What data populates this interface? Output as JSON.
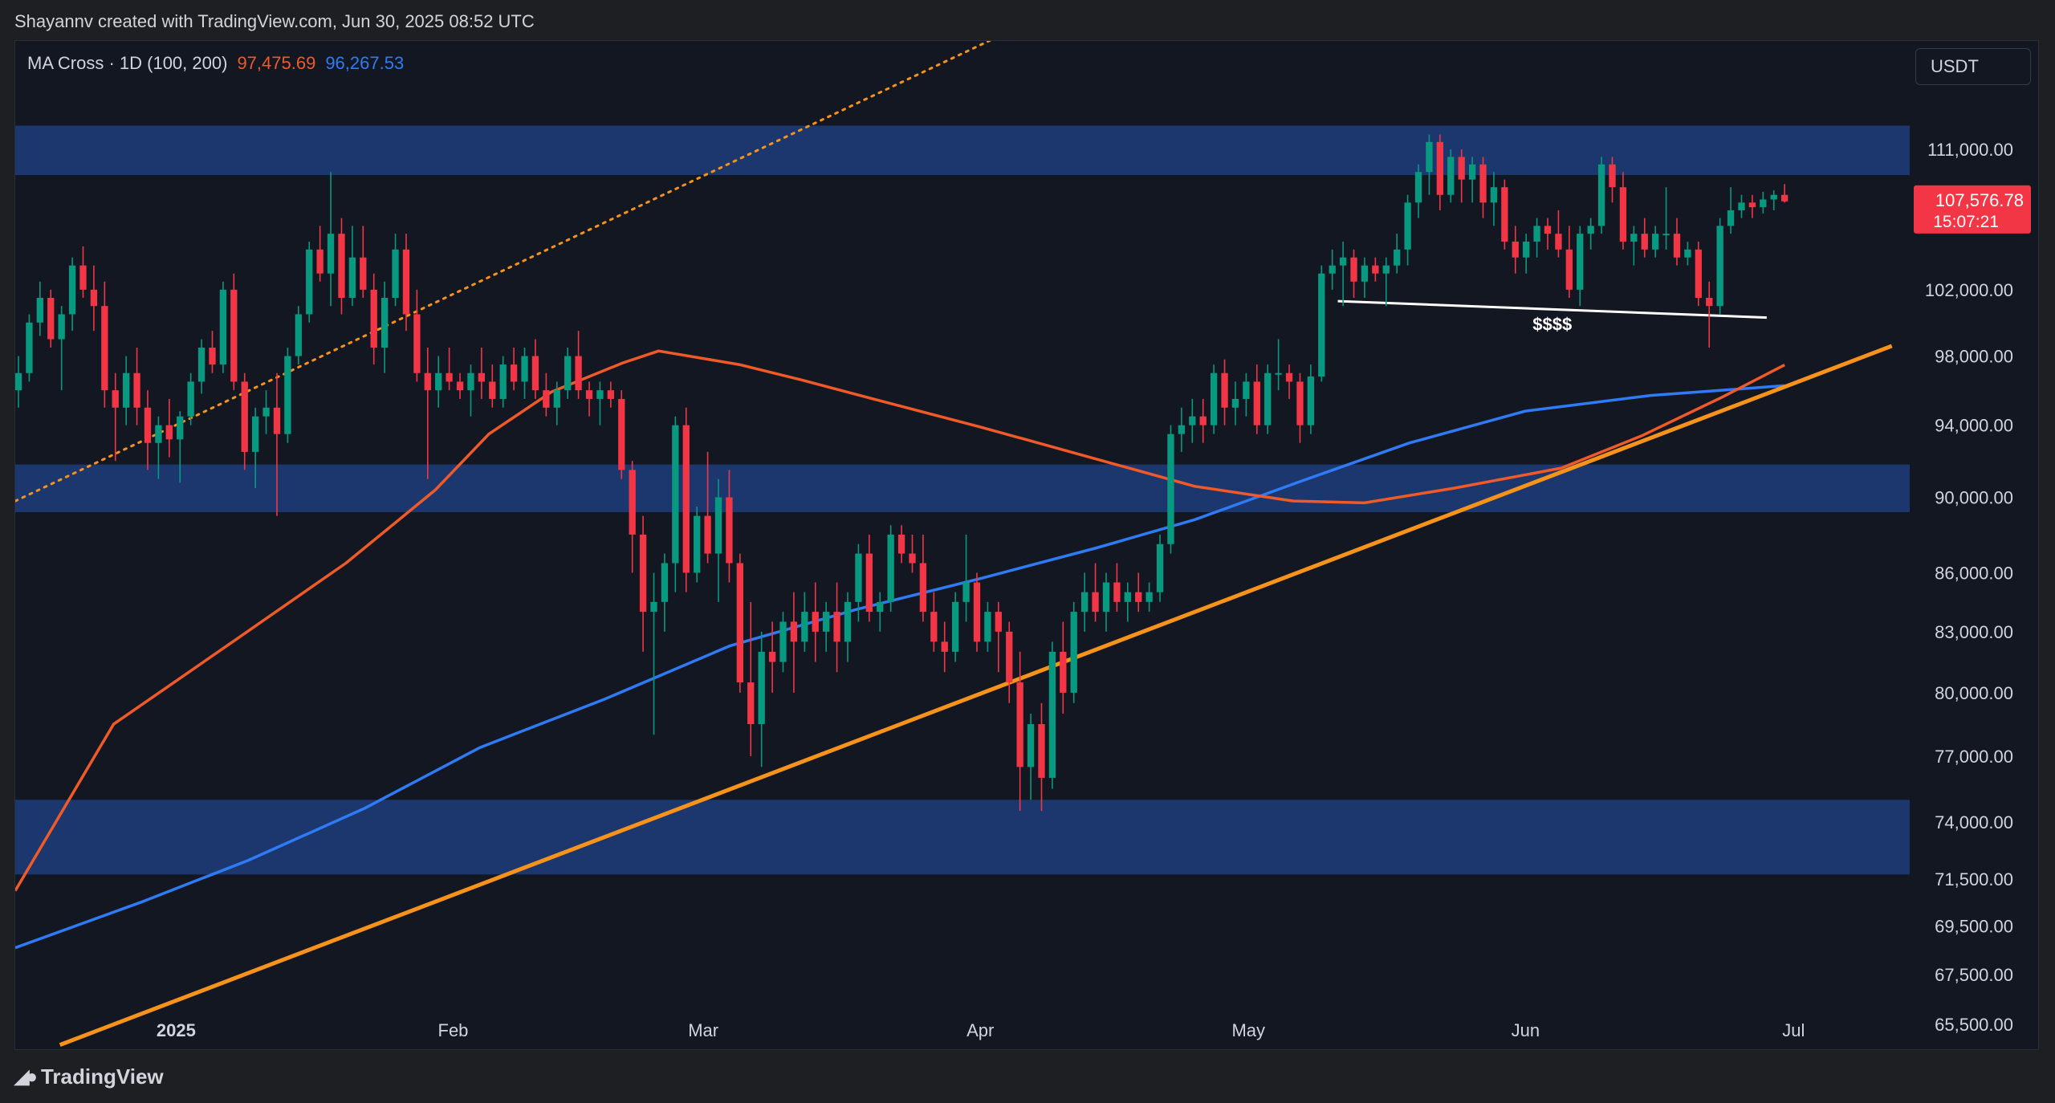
{
  "header": {
    "title": "Shayannv created with TradingView.com, Jun 30, 2025 08:52 UTC"
  },
  "legend": {
    "name": "MA Cross · 1D (100, 200)",
    "ma100": "97,475.69",
    "ma200": "96,267.53"
  },
  "currency": "USDT",
  "last_price": {
    "value": "107,576.78",
    "countdown": "15:07:21",
    "color": "#f23645"
  },
  "brand": "TradingView",
  "colors": {
    "up": "#089981",
    "down": "#f23645",
    "ma100": "#f05a28",
    "ma200": "#2f7bf5",
    "trendline": "#f7931a",
    "zone": "#1f3d7a",
    "background": "#131722"
  },
  "annotation": {
    "label": "$$$$"
  },
  "chart_data": {
    "type": "candlestick",
    "symbol_pair": "BTC/USDT",
    "timeframe": "1D",
    "y_axis": {
      "scale": "log",
      "ticks": [
        "111,000.00",
        "102,000.00",
        "98,000.00",
        "94,000.00",
        "90,000.00",
        "86,000.00",
        "83,000.00",
        "80,000.00",
        "77,000.00",
        "74,000.00",
        "71,500.00",
        "69,500.00",
        "67,500.00",
        "65,500.00"
      ]
    },
    "x_axis": {
      "ticks": [
        {
          "label": "2025",
          "date": "2025-01-01",
          "bold": true
        },
        {
          "label": "Feb",
          "date": "2025-02-01"
        },
        {
          "label": "Mar",
          "date": "2025-03-01"
        },
        {
          "label": "Apr",
          "date": "2025-04-01"
        },
        {
          "label": "May",
          "date": "2025-05-01"
        },
        {
          "label": "Jun",
          "date": "2025-06-01"
        },
        {
          "label": "Jul",
          "date": "2025-07-01"
        }
      ]
    },
    "x_range": [
      "2024-12-14",
      "2025-07-14"
    ],
    "y_range": [
      64500,
      118500
    ],
    "zones": [
      {
        "from": 109300,
        "to": 112600
      },
      {
        "from": 89200,
        "to": 91800
      },
      {
        "from": 71700,
        "to": 75000
      }
    ],
    "trendlines": [
      {
        "kind": "support",
        "style": "solid",
        "from": [
          "2024-12-19",
          64700
        ],
        "to": [
          "2025-07-12",
          98600
        ]
      },
      {
        "kind": "channel",
        "style": "dotted",
        "from": [
          "2024-12-14",
          89800
        ],
        "to": [
          "2025-04-15",
          122500
        ]
      },
      {
        "kind": "liquidity",
        "style": "solid-white",
        "from": [
          "2025-05-11",
          101300
        ],
        "to": [
          "2025-06-28",
          100300
        ]
      }
    ],
    "ma100": [
      [
        "2024-12-14",
        71000
      ],
      [
        "2024-12-25",
        78500
      ],
      [
        "2025-01-08",
        82700
      ],
      [
        "2025-01-20",
        86500
      ],
      [
        "2025-01-30",
        90400
      ],
      [
        "2025-02-05",
        93500
      ],
      [
        "2025-02-12",
        95900
      ],
      [
        "2025-02-20",
        97600
      ],
      [
        "2025-02-24",
        98300
      ],
      [
        "2025-03-05",
        97500
      ],
      [
        "2025-03-12",
        96600
      ],
      [
        "2025-03-20",
        95500
      ],
      [
        "2025-04-01",
        93900
      ],
      [
        "2025-04-14",
        92100
      ],
      [
        "2025-04-25",
        90600
      ],
      [
        "2025-05-06",
        89800
      ],
      [
        "2025-05-14",
        89700
      ],
      [
        "2025-05-24",
        90500
      ],
      [
        "2025-06-05",
        91600
      ],
      [
        "2025-06-14",
        93400
      ],
      [
        "2025-06-23",
        95600
      ],
      [
        "2025-06-30",
        97476
      ]
    ],
    "ma200": [
      [
        "2024-12-14",
        68600
      ],
      [
        "2024-12-28",
        70500
      ],
      [
        "2025-01-09",
        72300
      ],
      [
        "2025-01-22",
        74600
      ],
      [
        "2025-02-04",
        77400
      ],
      [
        "2025-02-18",
        79700
      ],
      [
        "2025-03-04",
        82300
      ],
      [
        "2025-03-18",
        84100
      ],
      [
        "2025-04-01",
        85700
      ],
      [
        "2025-04-14",
        87300
      ],
      [
        "2025-04-25",
        88800
      ],
      [
        "2025-05-07",
        90900
      ],
      [
        "2025-05-19",
        93000
      ],
      [
        "2025-06-01",
        94800
      ],
      [
        "2025-06-15",
        95700
      ],
      [
        "2025-06-30",
        96268
      ]
    ],
    "candles_ohlc": [
      [
        96000,
        98000,
        95000,
        97000
      ],
      [
        97000,
        100500,
        96500,
        100000
      ],
      [
        100000,
        102500,
        99200,
        101500
      ],
      [
        101500,
        102000,
        98500,
        99000
      ],
      [
        99000,
        101000,
        96000,
        100500
      ],
      [
        100500,
        104000,
        99500,
        103500
      ],
      [
        103500,
        104700,
        101500,
        102000
      ],
      [
        102000,
        103500,
        99500,
        101000
      ],
      [
        101000,
        102500,
        95000,
        96000
      ],
      [
        96000,
        97000,
        92000,
        95000
      ],
      [
        95000,
        98000,
        94000,
        97000
      ],
      [
        97000,
        98500,
        94000,
        95000
      ],
      [
        95000,
        96000,
        91500,
        93000
      ],
      [
        93000,
        94500,
        91000,
        94000
      ],
      [
        94000,
        95500,
        92200,
        93200
      ],
      [
        93200,
        94800,
        90800,
        94500
      ],
      [
        94500,
        97000,
        94000,
        96500
      ],
      [
        96500,
        99000,
        95800,
        98500
      ],
      [
        98500,
        99500,
        97000,
        97500
      ],
      [
        97500,
        102500,
        97000,
        102000
      ],
      [
        102000,
        103000,
        96000,
        96500
      ],
      [
        96500,
        97000,
        91500,
        92500
      ],
      [
        92500,
        95000,
        90500,
        94500
      ],
      [
        94500,
        96000,
        93500,
        95000
      ],
      [
        95000,
        97000,
        89000,
        93500
      ],
      [
        93500,
        98500,
        93000,
        98000
      ],
      [
        98000,
        101000,
        97500,
        100500
      ],
      [
        100500,
        105000,
        100000,
        104500
      ],
      [
        104500,
        106000,
        102500,
        103000
      ],
      [
        103000,
        109500,
        101000,
        105500
      ],
      [
        105500,
        106500,
        100500,
        101500
      ],
      [
        101500,
        106000,
        101000,
        104000
      ],
      [
        104000,
        106000,
        101500,
        102000
      ],
      [
        102000,
        103000,
        97500,
        98500
      ],
      [
        98500,
        102500,
        97000,
        101500
      ],
      [
        101500,
        105500,
        101000,
        104500
      ],
      [
        104500,
        105500,
        99500,
        100500
      ],
      [
        100500,
        102000,
        96500,
        97000
      ],
      [
        97000,
        98500,
        91000,
        96000
      ],
      [
        96000,
        98000,
        95000,
        97000
      ],
      [
        97000,
        98500,
        96000,
        96500
      ],
      [
        96500,
        97000,
        95500,
        96000
      ],
      [
        96000,
        97500,
        94500,
        97000
      ],
      [
        97000,
        98500,
        95500,
        96500
      ],
      [
        96500,
        97500,
        95000,
        95500
      ],
      [
        95500,
        98000,
        95000,
        97500
      ],
      [
        97500,
        98500,
        96000,
        96500
      ],
      [
        96500,
        98500,
        95500,
        98000
      ],
      [
        98000,
        99000,
        95500,
        96000
      ],
      [
        96000,
        97000,
        94500,
        95000
      ],
      [
        95000,
        96500,
        94000,
        96000
      ],
      [
        96000,
        98500,
        95500,
        98000
      ],
      [
        98000,
        99500,
        95500,
        96000
      ],
      [
        96000,
        96500,
        94500,
        95500
      ],
      [
        95500,
        96500,
        94000,
        96000
      ],
      [
        96000,
        96500,
        95000,
        95500
      ],
      [
        95500,
        96000,
        91000,
        91500
      ],
      [
        91500,
        92000,
        86000,
        88000
      ],
      [
        88000,
        89000,
        82000,
        84000
      ],
      [
        84000,
        86000,
        78000,
        84500
      ],
      [
        84500,
        87000,
        83000,
        86500
      ],
      [
        86500,
        94500,
        85000,
        94000
      ],
      [
        94000,
        95000,
        85000,
        86000
      ],
      [
        86000,
        89500,
        85500,
        89000
      ],
      [
        89000,
        92500,
        86500,
        87000
      ],
      [
        87000,
        91000,
        84500,
        90000
      ],
      [
        90000,
        91500,
        85500,
        86500
      ],
      [
        86500,
        87000,
        80000,
        80500
      ],
      [
        80500,
        84500,
        77000,
        78500
      ],
      [
        78500,
        83000,
        76500,
        82000
      ],
      [
        82000,
        83500,
        80000,
        81500
      ],
      [
        81500,
        84000,
        81000,
        83500
      ],
      [
        83500,
        85000,
        80000,
        82500
      ],
      [
        82500,
        85000,
        82000,
        84000
      ],
      [
        84000,
        85500,
        81500,
        83000
      ],
      [
        83000,
        84500,
        82000,
        84000
      ],
      [
        84000,
        85500,
        81000,
        82500
      ],
      [
        82500,
        85000,
        81500,
        84500
      ],
      [
        84500,
        87500,
        83500,
        87000
      ],
      [
        87000,
        88000,
        83500,
        84000
      ],
      [
        84000,
        85000,
        83000,
        84500
      ],
      [
        84500,
        88500,
        84000,
        88000
      ],
      [
        88000,
        88500,
        86500,
        87000
      ],
      [
        87000,
        88000,
        86000,
        86500
      ],
      [
        86500,
        88000,
        83500,
        84000
      ],
      [
        84000,
        85000,
        82000,
        82500
      ],
      [
        82500,
        83500,
        81000,
        82000
      ],
      [
        82000,
        85000,
        81500,
        84500
      ],
      [
        84500,
        88000,
        83500,
        85500
      ],
      [
        85500,
        86000,
        82000,
        82500
      ],
      [
        82500,
        84500,
        82000,
        84000
      ],
      [
        84000,
        84500,
        81000,
        83000
      ],
      [
        83000,
        83500,
        79500,
        80500
      ],
      [
        80500,
        82000,
        74500,
        76500
      ],
      [
        76500,
        79000,
        75000,
        78500
      ],
      [
        78500,
        79500,
        74500,
        76000
      ],
      [
        76000,
        82500,
        75500,
        82000
      ],
      [
        82000,
        83500,
        79000,
        80000
      ],
      [
        80000,
        84500,
        79500,
        84000
      ],
      [
        84000,
        86000,
        83000,
        85000
      ],
      [
        85000,
        86500,
        83500,
        84000
      ],
      [
        84000,
        86000,
        83000,
        85500
      ],
      [
        85500,
        86500,
        84000,
        84500
      ],
      [
        84500,
        85500,
        83500,
        85000
      ],
      [
        85000,
        86000,
        84000,
        84500
      ],
      [
        84500,
        85500,
        84000,
        85000
      ],
      [
        85000,
        88000,
        84500,
        87500
      ],
      [
        87500,
        94000,
        87000,
        93500
      ],
      [
        93500,
        95000,
        92500,
        94000
      ],
      [
        94000,
        95500,
        93000,
        94500
      ],
      [
        94500,
        95500,
        93000,
        94000
      ],
      [
        94000,
        97500,
        93500,
        97000
      ],
      [
        97000,
        97800,
        94000,
        95000
      ],
      [
        95000,
        96500,
        94000,
        95500
      ],
      [
        95500,
        97000,
        94500,
        96500
      ],
      [
        96500,
        97500,
        93500,
        94000
      ],
      [
        94000,
        97500,
        93500,
        97000
      ],
      [
        97000,
        99000,
        96000,
        97000
      ],
      [
        97000,
        97500,
        95500,
        96500
      ],
      [
        96500,
        97000,
        93000,
        94000
      ],
      [
        94000,
        97500,
        93500,
        96800
      ],
      [
        96800,
        103500,
        96500,
        103000
      ],
      [
        103000,
        104500,
        102000,
        103500
      ],
      [
        103500,
        105000,
        101000,
        104000
      ],
      [
        104000,
        104500,
        101500,
        102500
      ],
      [
        102500,
        104000,
        101500,
        103500
      ],
      [
        103500,
        104000,
        102500,
        103000
      ],
      [
        103000,
        104000,
        101000,
        103500
      ],
      [
        103500,
        105500,
        103000,
        104500
      ],
      [
        104500,
        108000,
        103500,
        107500
      ],
      [
        107500,
        110000,
        106500,
        109500
      ],
      [
        109500,
        112000,
        108000,
        111500
      ],
      [
        111500,
        112000,
        107000,
        108000
      ],
      [
        108000,
        111000,
        107500,
        110500
      ],
      [
        110500,
        111000,
        107500,
        109000
      ],
      [
        109000,
        110500,
        107500,
        110000
      ],
      [
        110000,
        110500,
        106500,
        107500
      ],
      [
        107500,
        109500,
        106000,
        108500
      ],
      [
        108500,
        109000,
        104500,
        105000
      ],
      [
        105000,
        106000,
        103000,
        104000
      ],
      [
        104000,
        105500,
        103000,
        105000
      ],
      [
        105000,
        106500,
        104000,
        106000
      ],
      [
        106000,
        106500,
        104500,
        105500
      ],
      [
        105500,
        107000,
        104000,
        104500
      ],
      [
        104500,
        106000,
        101500,
        102000
      ],
      [
        102000,
        106000,
        101000,
        105500
      ],
      [
        105500,
        106500,
        104500,
        106000
      ],
      [
        106000,
        110500,
        105500,
        110000
      ],
      [
        110000,
        110500,
        107500,
        108500
      ],
      [
        108500,
        109500,
        104500,
        105000
      ],
      [
        105000,
        106000,
        103500,
        105500
      ],
      [
        105500,
        106500,
        104000,
        104500
      ],
      [
        104500,
        106000,
        104000,
        105500
      ],
      [
        105500,
        108500,
        104500,
        105500
      ],
      [
        105500,
        106500,
        103500,
        104000
      ],
      [
        104000,
        105000,
        103500,
        104500
      ],
      [
        104500,
        105000,
        101000,
        101500
      ],
      [
        101500,
        102500,
        98500,
        101000
      ],
      [
        101000,
        106500,
        100500,
        106000
      ],
      [
        106000,
        108500,
        105500,
        107000
      ],
      [
        107000,
        108000,
        106500,
        107500
      ],
      [
        107500,
        108000,
        106500,
        107200
      ],
      [
        107200,
        108200,
        106800,
        107700
      ],
      [
        107700,
        108300,
        107000,
        108000
      ],
      [
        108000,
        108700,
        107500,
        107577
      ]
    ]
  }
}
